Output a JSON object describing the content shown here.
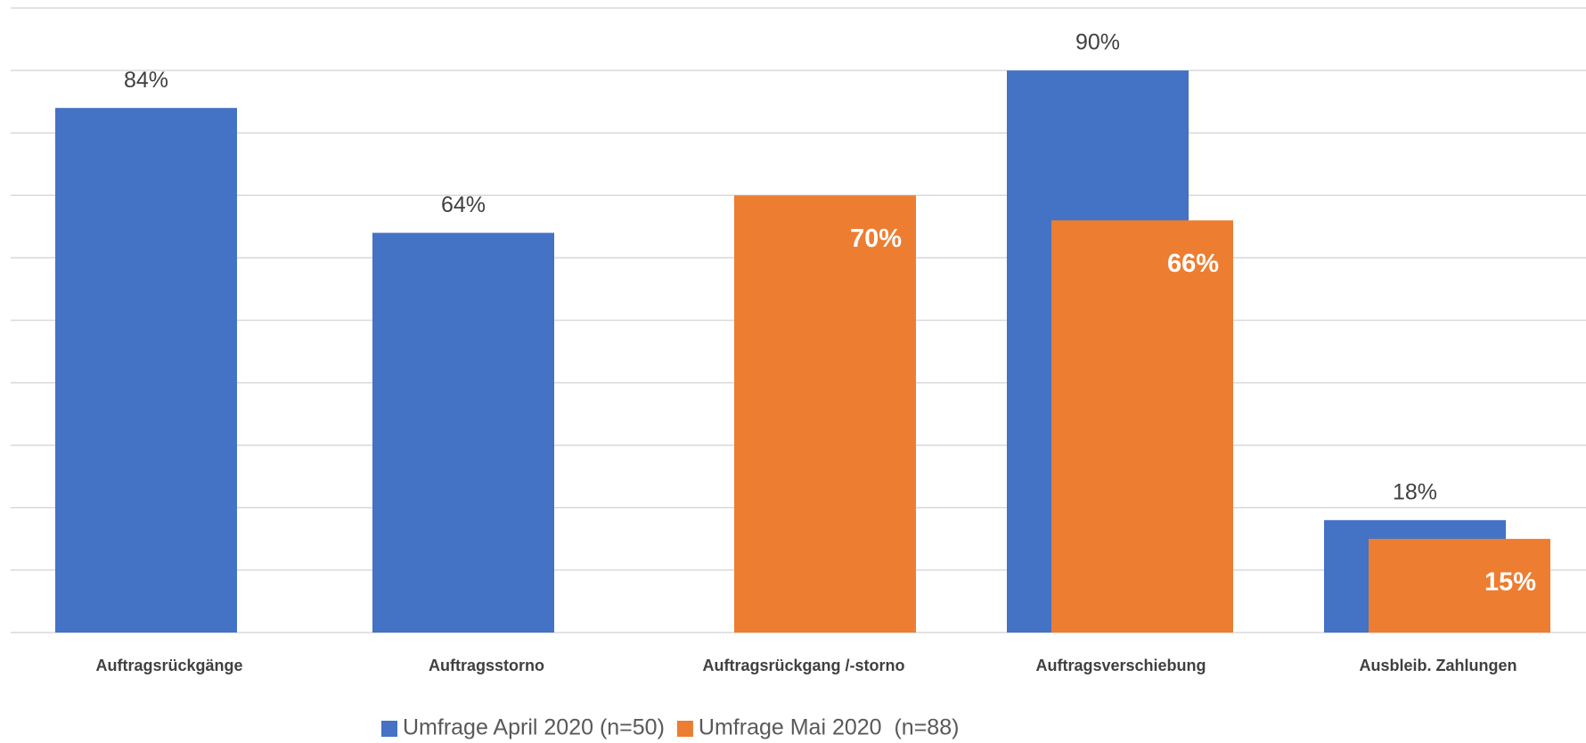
{
  "chart_data": {
    "type": "bar",
    "categories": [
      "Auftragsrückgänge",
      "Auftragsstorno",
      "Auftragsrückgang /-storno",
      "Auftragsverschiebung",
      "Ausbleib. Zahlungen"
    ],
    "series": [
      {
        "name": "Umfrage April 2020 (n=50)",
        "color": "#4472c4",
        "values": [
          84,
          64,
          null,
          90,
          18
        ],
        "value_labels": [
          "84%",
          "64%",
          null,
          "90%",
          "18%"
        ]
      },
      {
        "name": "Umfrage Mai 2020  (n=88)",
        "color": "#ed7d31",
        "values": [
          null,
          null,
          70,
          66,
          15
        ],
        "value_labels": [
          null,
          null,
          "70%",
          "66%",
          "15%"
        ]
      }
    ],
    "ylim": [
      0,
      100
    ],
    "yticks": [
      0,
      10,
      20,
      30,
      40,
      50,
      60,
      70,
      80,
      90,
      100
    ],
    "grid": true,
    "legend": "bottom"
  }
}
